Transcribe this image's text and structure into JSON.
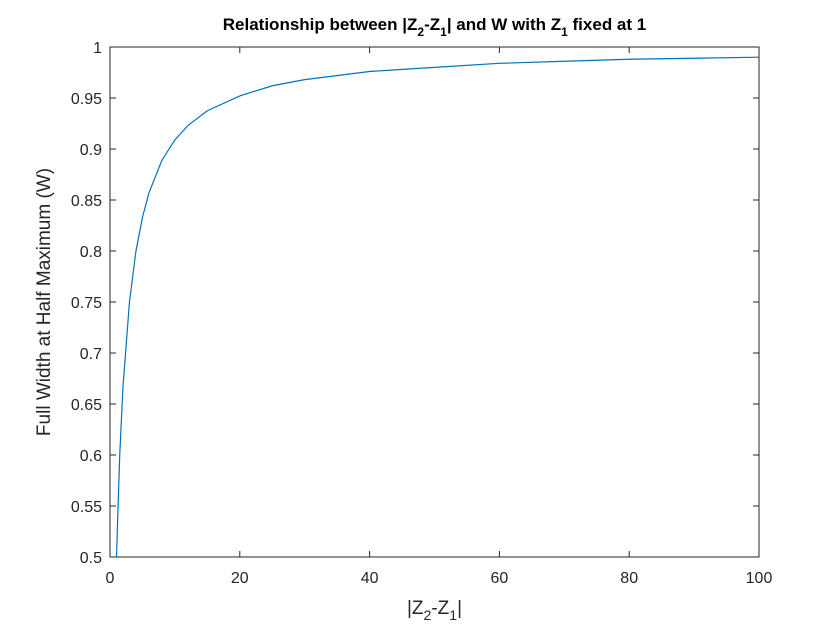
{
  "chart_data": {
    "type": "line",
    "title": "Relationship between |Z2-Z1| and W with Z1 fixed at 1",
    "title_parts": {
      "pre": "Relationship between |Z",
      "sub1": "2",
      "mid1": "-Z",
      "sub2": "1",
      "mid2": "| and W with Z",
      "sub3": "1",
      "post": " fixed at 1"
    },
    "xlabel": "|Z2-Z1|",
    "xlabel_parts": {
      "pre": "|Z",
      "sub1": "2",
      "mid": "-Z",
      "sub2": "1",
      "post": "|"
    },
    "ylabel": "Full Width at Half Maximum (W)",
    "xlim": [
      0,
      100
    ],
    "ylim": [
      0.5,
      1
    ],
    "xticks": [
      0,
      20,
      40,
      60,
      80,
      100
    ],
    "yticks": [
      0.5,
      0.55,
      0.6,
      0.65,
      0.7,
      0.75,
      0.8,
      0.85,
      0.9,
      0.95,
      1
    ],
    "ytick_labels": [
      "0.5",
      "0.55",
      "0.6",
      "0.65",
      "0.7",
      "0.75",
      "0.8",
      "0.85",
      "0.9",
      "0.95",
      "1"
    ],
    "xtick_labels": [
      "0",
      "20",
      "40",
      "60",
      "80",
      "100"
    ],
    "grid": false,
    "series": [
      {
        "color": "#0072BD",
        "x": [
          1,
          1.5,
          2,
          3,
          4,
          5,
          6,
          8,
          10,
          12,
          15,
          20,
          25,
          30,
          40,
          50,
          60,
          70,
          80,
          90,
          100
        ],
        "y": [
          0.5,
          0.6,
          0.667,
          0.75,
          0.8,
          0.833,
          0.857,
          0.889,
          0.909,
          0.923,
          0.9375,
          0.952,
          0.962,
          0.968,
          0.976,
          0.98,
          0.984,
          0.986,
          0.988,
          0.989,
          0.99
        ]
      }
    ]
  }
}
